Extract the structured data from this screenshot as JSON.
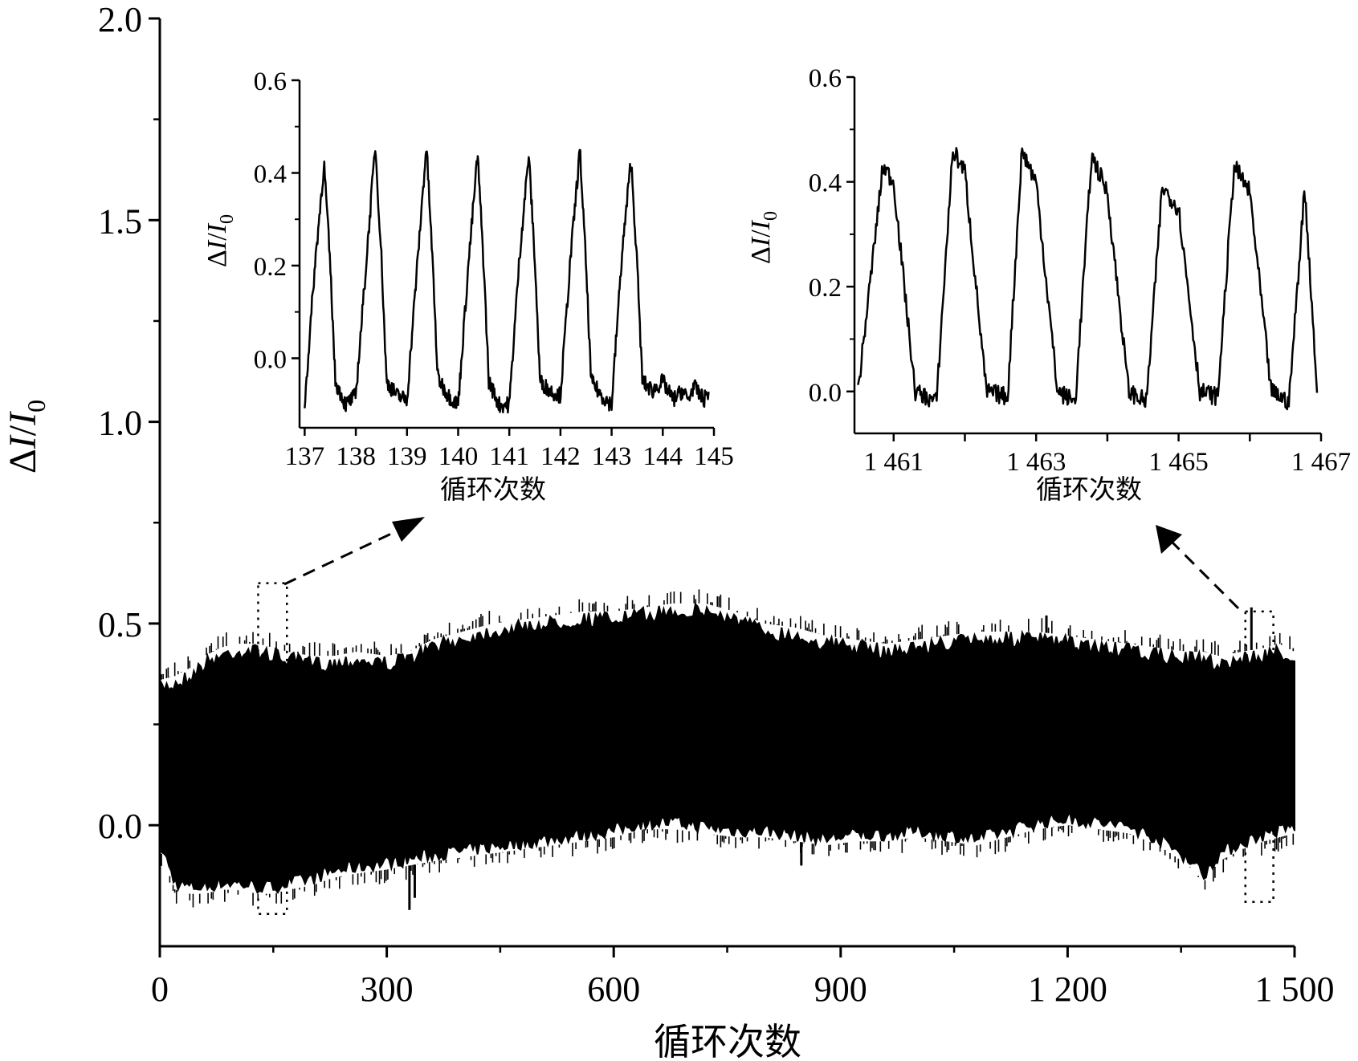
{
  "chart_data": [
    {
      "id": "main",
      "type": "line",
      "ylabel": {
        "delta": "Δ",
        "I": "I",
        "slash": "/",
        "I0": "I",
        "sub": "0"
      },
      "xlabel": "循环次数",
      "xlim": [
        0,
        1500
      ],
      "ylim": [
        -0.3,
        2.0
      ],
      "xticks": [
        0,
        300,
        600,
        900,
        1200,
        1500
      ],
      "xtick_labels": [
        "0",
        "300",
        "600",
        "900",
        "1 200",
        "1 500"
      ],
      "xtick_minor": [
        150,
        450,
        750,
        1050,
        1350
      ],
      "yticks": [
        0.0,
        0.5,
        1.0,
        1.5,
        2.0
      ],
      "ytick_labels": [
        "0.0",
        "0.5",
        "1.0",
        "1.5",
        "2.0"
      ],
      "line_color": "#000000",
      "envelope": {
        "x": [
          0,
          20,
          40,
          60,
          80,
          100,
          130,
          150,
          170,
          200,
          230,
          260,
          300,
          330,
          360,
          400,
          440,
          480,
          520,
          560,
          600,
          640,
          680,
          720,
          760,
          800,
          840,
          880,
          920,
          960,
          1000,
          1040,
          1080,
          1120,
          1160,
          1200,
          1240,
          1280,
          1320,
          1360,
          1380,
          1400,
          1430,
          1460,
          1480,
          1500
        ],
        "upper": [
          0.36,
          0.37,
          0.39,
          0.42,
          0.44,
          0.45,
          0.45,
          0.44,
          0.43,
          0.42,
          0.42,
          0.43,
          0.42,
          0.43,
          0.46,
          0.48,
          0.5,
          0.51,
          0.52,
          0.53,
          0.53,
          0.54,
          0.55,
          0.55,
          0.53,
          0.5,
          0.49,
          0.47,
          0.46,
          0.45,
          0.46,
          0.47,
          0.48,
          0.48,
          0.48,
          0.47,
          0.46,
          0.45,
          0.44,
          0.43,
          0.43,
          0.42,
          0.43,
          0.44,
          0.45,
          0.43
        ],
        "lower": [
          -0.06,
          -0.16,
          -0.17,
          -0.17,
          -0.16,
          -0.16,
          -0.17,
          -0.17,
          -0.16,
          -0.15,
          -0.13,
          -0.12,
          -0.11,
          -0.1,
          -0.09,
          -0.08,
          -0.07,
          -0.06,
          -0.05,
          -0.04,
          -0.03,
          -0.01,
          -0.01,
          -0.02,
          -0.03,
          -0.03,
          -0.04,
          -0.05,
          -0.04,
          -0.04,
          -0.03,
          -0.04,
          -0.05,
          -0.03,
          -0.01,
          0.0,
          -0.01,
          -0.02,
          -0.05,
          -0.1,
          -0.14,
          -0.09,
          -0.06,
          -0.04,
          -0.03,
          -0.02
        ]
      },
      "outliers": [
        {
          "x": 330,
          "y": -0.21
        },
        {
          "x": 337,
          "y": -0.18
        },
        {
          "x": 848,
          "y": -0.1
        },
        {
          "x": 1443,
          "y": 0.54
        },
        {
          "x": 1172,
          "y": 0.52
        }
      ],
      "zoom_boxes": [
        {
          "x": [
            130,
            168
          ],
          "y": [
            -0.22,
            0.6
          ]
        },
        {
          "x": [
            1435,
            1472
          ],
          "y": [
            -0.19,
            0.53
          ]
        }
      ]
    },
    {
      "id": "inset-left",
      "type": "line",
      "ylabel": {
        "delta": "Δ",
        "I": "I",
        "slash": "/",
        "I0": "I",
        "sub": "0"
      },
      "xlabel": "循环次数",
      "xlim": [
        136.9,
        145
      ],
      "ylim": [
        -0.15,
        0.6
      ],
      "xticks": [
        137,
        138,
        139,
        140,
        141,
        142,
        143,
        144,
        145
      ],
      "xtick_labels": [
        "137",
        "138",
        "139",
        "140",
        "141",
        "142",
        "143",
        "144",
        "145"
      ],
      "yticks": [
        0.0,
        0.2,
        0.4,
        0.6
      ],
      "ytick_labels": [
        "0.0",
        "0.2",
        "0.4",
        "0.6"
      ],
      "series": [
        {
          "x": [
            137.0,
            137.2,
            137.38,
            137.5,
            137.6,
            137.8,
            138.0,
            138.2,
            138.38,
            138.5,
            138.6,
            138.8,
            139.0,
            139.2,
            139.38,
            139.5,
            139.6,
            139.8,
            140.0,
            140.2,
            140.38,
            140.5,
            140.6,
            140.8,
            141.0,
            141.2,
            141.38,
            141.5,
            141.6,
            141.8,
            142.0,
            142.2,
            142.38,
            142.5,
            142.6,
            142.8,
            143.0,
            143.2,
            143.38,
            143.5,
            143.6,
            143.8,
            144.0,
            144.2,
            144.38,
            144.5,
            144.6,
            144.8,
            144.9
          ],
          "y": [
            -0.1,
            0.2,
            0.42,
            0.2,
            -0.05,
            -0.1,
            -0.08,
            0.2,
            0.46,
            0.22,
            -0.05,
            -0.08,
            -0.09,
            0.2,
            0.46,
            0.21,
            -0.04,
            -0.08,
            -0.1,
            0.2,
            0.44,
            0.2,
            -0.05,
            -0.1,
            -0.1,
            0.22,
            0.44,
            0.21,
            -0.05,
            -0.07,
            -0.08,
            0.22,
            0.45,
            0.2,
            -0.05,
            -0.08,
            -0.1,
            0.22,
            0.43,
            0.2,
            -0.05,
            -0.07,
            -0.05,
            -0.09,
            -0.07,
            -0.09,
            -0.06,
            -0.09,
            -0.07
          ],
          "period": 1.0,
          "peaks": [
            0.42,
            0.46,
            0.46,
            0.44,
            0.44,
            0.45,
            0.43
          ]
        }
      ]
    },
    {
      "id": "inset-right",
      "type": "line",
      "ylabel": {
        "delta": "Δ",
        "I": "I",
        "slash": "/",
        "I0": "I",
        "sub": "0"
      },
      "xlabel": "循环次数",
      "xlim": [
        1460.45,
        1467
      ],
      "ylim": [
        -0.08,
        0.6
      ],
      "xticks": [
        1461,
        1462,
        1463,
        1464,
        1465,
        1466,
        1467
      ],
      "xtick_labels": [
        "1 461",
        "",
        "1 463",
        "",
        "1 465",
        "",
        "1 467"
      ],
      "yticks": [
        0.0,
        0.2,
        0.4,
        0.6
      ],
      "ytick_labels": [
        "0.0",
        "0.2",
        "0.4",
        "0.6"
      ],
      "series": [
        {
          "x": [
            1460.5,
            1460.85,
            1461.0,
            1461.3,
            1461.6,
            1461.83,
            1462.0,
            1462.3,
            1462.6,
            1462.8,
            1463.0,
            1463.3,
            1463.55,
            1463.78,
            1464.0,
            1464.3,
            1464.55,
            1464.77,
            1465.0,
            1465.3,
            1465.55,
            1465.78,
            1466.0,
            1466.3,
            1466.55,
            1466.77,
            1466.95
          ],
          "y": [
            0.0,
            0.43,
            0.4,
            0.0,
            -0.02,
            0.46,
            0.42,
            0.0,
            -0.01,
            0.46,
            0.4,
            0.0,
            -0.02,
            0.45,
            0.38,
            0.0,
            -0.02,
            0.39,
            0.35,
            0.0,
            -0.01,
            0.43,
            0.38,
            0.0,
            -0.02,
            0.39,
            -0.01
          ],
          "period": 0.95,
          "peaks": [
            0.43,
            0.46,
            0.46,
            0.45,
            0.39,
            0.43,
            0.39
          ]
        }
      ]
    }
  ]
}
